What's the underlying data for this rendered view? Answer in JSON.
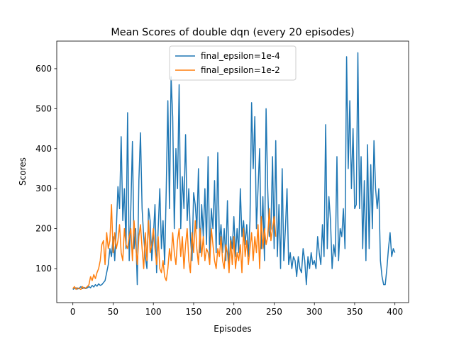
{
  "chart_data": {
    "type": "line",
    "title": "Mean Scores of double dqn (every 20 episodes)",
    "xlabel": "Episodes",
    "ylabel": "Scores",
    "xlim": [
      -20,
      417
    ],
    "ylim": [
      15,
      669
    ],
    "xticks": [
      0,
      50,
      100,
      150,
      200,
      250,
      300,
      350,
      400
    ],
    "yticks": [
      100,
      200,
      300,
      400,
      500,
      600
    ],
    "legend": "upper center",
    "series": [
      {
        "name": "final_epsilon=1e-4",
        "color": "#1f77b4",
        "x": [
          0,
          2,
          4,
          6,
          8,
          10,
          12,
          14,
          16,
          18,
          20,
          22,
          24,
          26,
          28,
          30,
          32,
          34,
          36,
          38,
          40,
          42,
          44,
          46,
          48,
          50,
          52,
          54,
          56,
          58,
          60,
          62,
          64,
          66,
          68,
          70,
          72,
          74,
          76,
          78,
          80,
          82,
          84,
          86,
          88,
          90,
          92,
          94,
          96,
          98,
          100,
          102,
          104,
          106,
          108,
          110,
          112,
          114,
          116,
          118,
          120,
          122,
          124,
          126,
          128,
          130,
          132,
          134,
          136,
          138,
          140,
          142,
          144,
          146,
          148,
          150,
          152,
          154,
          156,
          158,
          160,
          162,
          164,
          166,
          168,
          170,
          172,
          174,
          176,
          178,
          180,
          182,
          184,
          186,
          188,
          190,
          192,
          194,
          196,
          198,
          200,
          202,
          204,
          206,
          208,
          210,
          212,
          214,
          216,
          218,
          220,
          222,
          224,
          226,
          228,
          230,
          232,
          234,
          236,
          238,
          240,
          242,
          244,
          246,
          248,
          250,
          252,
          254,
          256,
          258,
          260,
          262,
          264,
          266,
          268,
          270,
          272,
          274,
          276,
          278,
          280,
          282,
          284,
          286,
          288,
          290,
          292,
          294,
          296,
          298,
          300,
          302,
          304,
          306,
          308,
          310,
          312,
          314,
          316,
          318,
          320,
          322,
          324,
          326,
          328,
          330,
          332,
          334,
          336,
          338,
          340,
          342,
          344,
          346,
          348,
          350,
          352,
          354,
          356,
          358,
          360,
          362,
          364,
          366,
          368,
          370,
          372,
          374,
          376,
          378,
          380,
          382,
          384,
          386,
          388,
          390,
          392,
          394,
          396,
          398,
          400
        ],
        "values": [
          48,
          50,
          52,
          49,
          51,
          55,
          50,
          53,
          50,
          52,
          55,
          52,
          58,
          54,
          60,
          56,
          62,
          58,
          60,
          65,
          70,
          90,
          110,
          150,
          130,
          180,
          120,
          200,
          305,
          250,
          430,
          220,
          300,
          150,
          490,
          120,
          250,
          418,
          150,
          200,
          60,
          320,
          440,
          250,
          180,
          130,
          100,
          250,
          220,
          120,
          180,
          260,
          90,
          200,
          300,
          150,
          220,
          110,
          300,
          520,
          250,
          580,
          480,
          200,
          400,
          300,
          560,
          200,
          330,
          250,
          435,
          220,
          300,
          180,
          120,
          290,
          260,
          200,
          350,
          140,
          260,
          180,
          300,
          160,
          380,
          120,
          250,
          200,
          320,
          140,
          390,
          160,
          210,
          140,
          200,
          120,
          270,
          100,
          180,
          150,
          230,
          130,
          200,
          140,
          300,
          180,
          220,
          160,
          210,
          130,
          220,
          515,
          350,
          480,
          200,
          300,
          400,
          150,
          280,
          120,
          500,
          300,
          180,
          200,
          380,
          150,
          420,
          130,
          260,
          100,
          350,
          120,
          200,
          300,
          110,
          140,
          100,
          130,
          120,
          80,
          130,
          100,
          90,
          150,
          120,
          60,
          130,
          100,
          140,
          110,
          120,
          100,
          180,
          140,
          110,
          210,
          130,
          460,
          150,
          280,
          220,
          100,
          160,
          130,
          380,
          120,
          200,
          180,
          250,
          150,
          630,
          350,
          520,
          300,
          450,
          250,
          260,
          640,
          250,
          380,
          150,
          320,
          120,
          410,
          150,
          360,
          200,
          420,
          300,
          250,
          300,
          120,
          80,
          60,
          60,
          100,
          150,
          190,
          130,
          150,
          140
        ]
      },
      {
        "name": "final_epsilon=1e-2",
        "color": "#ff7f0e",
        "x": [
          0,
          2,
          4,
          6,
          8,
          10,
          12,
          14,
          16,
          18,
          20,
          22,
          24,
          26,
          28,
          30,
          32,
          34,
          36,
          38,
          40,
          42,
          44,
          46,
          48,
          50,
          52,
          54,
          56,
          58,
          60,
          62,
          64,
          66,
          68,
          70,
          72,
          74,
          76,
          78,
          80,
          82,
          84,
          86,
          88,
          90,
          92,
          94,
          96,
          98,
          100,
          102,
          104,
          106,
          108,
          110,
          112,
          114,
          116,
          118,
          120,
          122,
          124,
          126,
          128,
          130,
          132,
          134,
          136,
          138,
          140,
          142,
          144,
          146,
          148,
          150,
          152,
          154,
          156,
          158,
          160,
          162,
          164,
          166,
          168,
          170,
          172,
          174,
          176,
          178,
          180,
          182,
          184,
          186,
          188,
          190,
          192,
          194,
          196,
          198,
          200,
          202,
          204,
          206,
          208,
          210,
          212,
          214,
          216,
          218,
          220,
          222,
          224,
          226,
          228,
          230,
          232,
          234,
          236,
          238,
          240,
          242,
          244,
          246,
          248,
          250,
          252
        ],
        "values": [
          50,
          55,
          48,
          52,
          50,
          48,
          55,
          50,
          52,
          55,
          60,
          80,
          70,
          85,
          75,
          90,
          100,
          120,
          160,
          170,
          110,
          190,
          150,
          170,
          260,
          140,
          190,
          150,
          170,
          210,
          140,
          120,
          200,
          160,
          150,
          180,
          200,
          120,
          220,
          160,
          110,
          180,
          210,
          150,
          100,
          190,
          120,
          220,
          140,
          160,
          200,
          150,
          110,
          180,
          100,
          90,
          120,
          80,
          70,
          100,
          150,
          120,
          190,
          140,
          110,
          170,
          200,
          130,
          180,
          100,
          160,
          200,
          120,
          90,
          190,
          140,
          220,
          150,
          110,
          200,
          130,
          180,
          120,
          150,
          140,
          110,
          200,
          160,
          120,
          100,
          150,
          130,
          180,
          120,
          100,
          160,
          140,
          90,
          170,
          110,
          180,
          100,
          140,
          120,
          160,
          90,
          200,
          130,
          170,
          110,
          150,
          190,
          120,
          180,
          140,
          210,
          100,
          230,
          150,
          200,
          160,
          180,
          250,
          170,
          200,
          230,
          180
        ]
      }
    ]
  }
}
